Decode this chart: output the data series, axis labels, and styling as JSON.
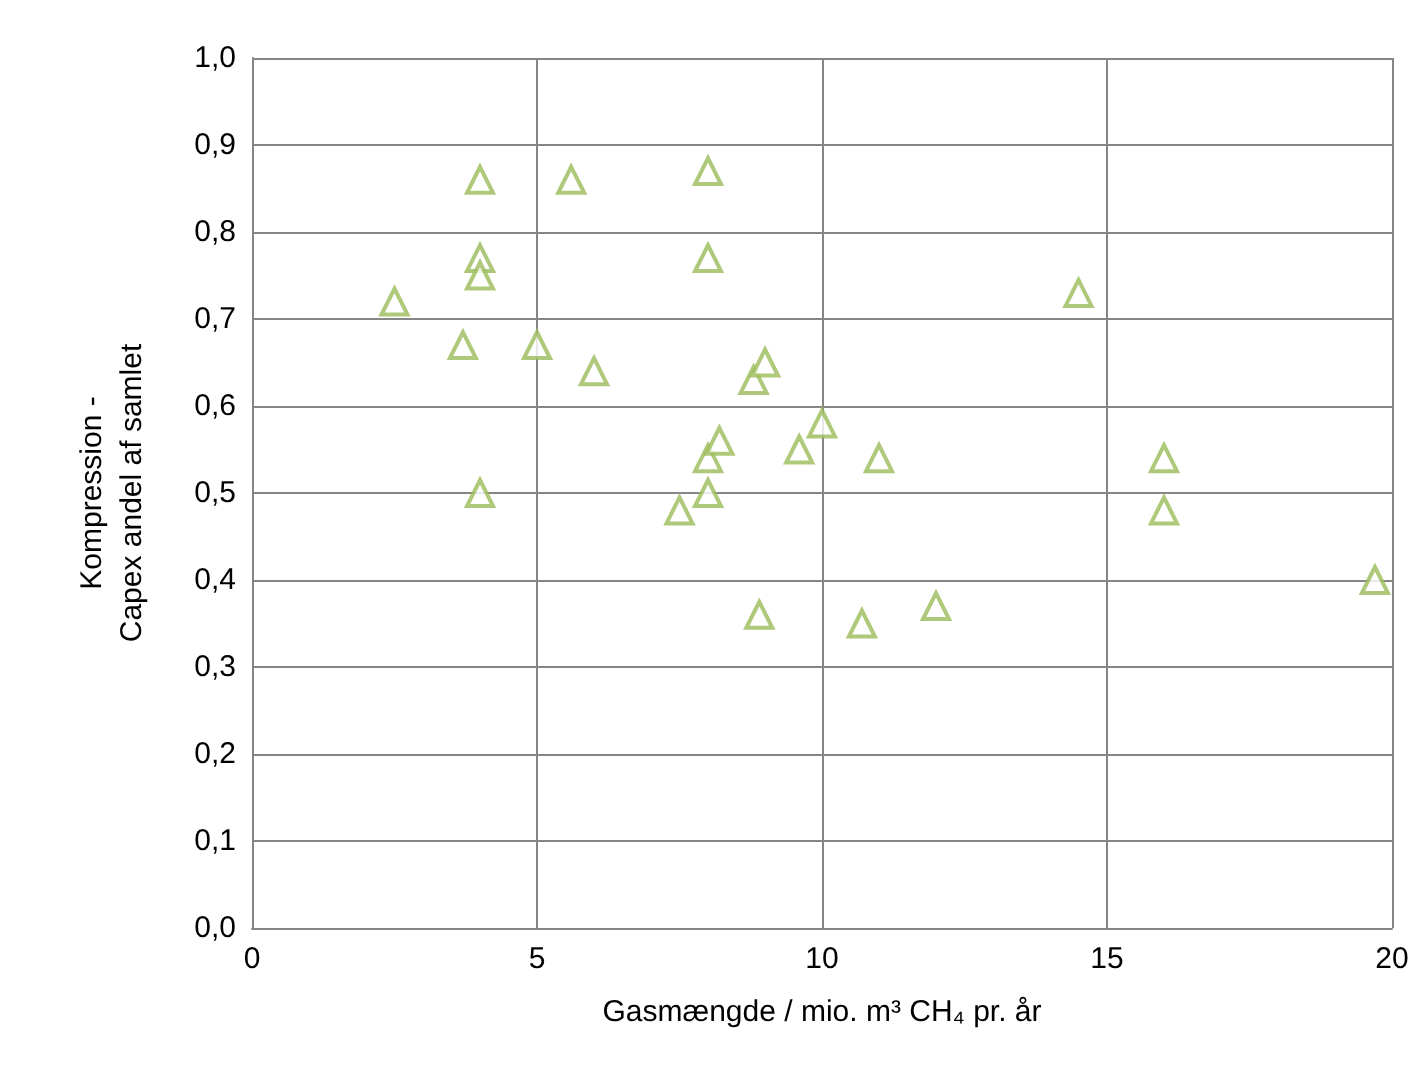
{
  "chart_data": {
    "type": "scatter",
    "xlabel": "Gasmængde / mio. m³ CH₄ pr. år",
    "ylabel": "Kompression -\nCapex andel af samlet",
    "x": [
      2.5,
      3.7,
      4.0,
      4.0,
      4.0,
      4.0,
      5.0,
      5.6,
      6.0,
      7.5,
      8.0,
      8.0,
      8.0,
      8.0,
      8.2,
      8.8,
      9.0,
      8.9,
      9.6,
      10.0,
      10.7,
      11.0,
      12.0,
      14.5,
      16.0,
      16.0,
      19.7
    ],
    "series": [
      {
        "color": "#9bbb59",
        "values": [
          0.72,
          0.67,
          0.86,
          0.77,
          0.75,
          0.5,
          0.67,
          0.86,
          0.64,
          0.48,
          0.87,
          0.77,
          0.54,
          0.5,
          0.56,
          0.63,
          0.65,
          0.36,
          0.55,
          0.58,
          0.35,
          0.54,
          0.37,
          0.73,
          0.54,
          0.48,
          0.4
        ]
      }
    ],
    "xlim": [
      0,
      20
    ],
    "xticks": [
      0,
      5,
      10,
      15,
      20
    ],
    "ylim": [
      0,
      1
    ],
    "yticks": [
      {
        "value": 0,
        "label": "0,0"
      },
      {
        "value": 0.1,
        "label": "0,1"
      },
      {
        "value": 0.2,
        "label": "0,2"
      },
      {
        "value": 0.3,
        "label": "0,3"
      },
      {
        "value": 0.4,
        "label": "0,4"
      },
      {
        "value": 0.5,
        "label": "0,5"
      },
      {
        "value": 0.6,
        "label": "0,6"
      },
      {
        "value": 0.7,
        "label": "0,7"
      },
      {
        "value": 0.8,
        "label": "0,8"
      },
      {
        "value": 0.9,
        "label": "0,9"
      },
      {
        "value": 1,
        "label": "1,0"
      }
    ],
    "grid": true,
    "marker": "triangle"
  }
}
